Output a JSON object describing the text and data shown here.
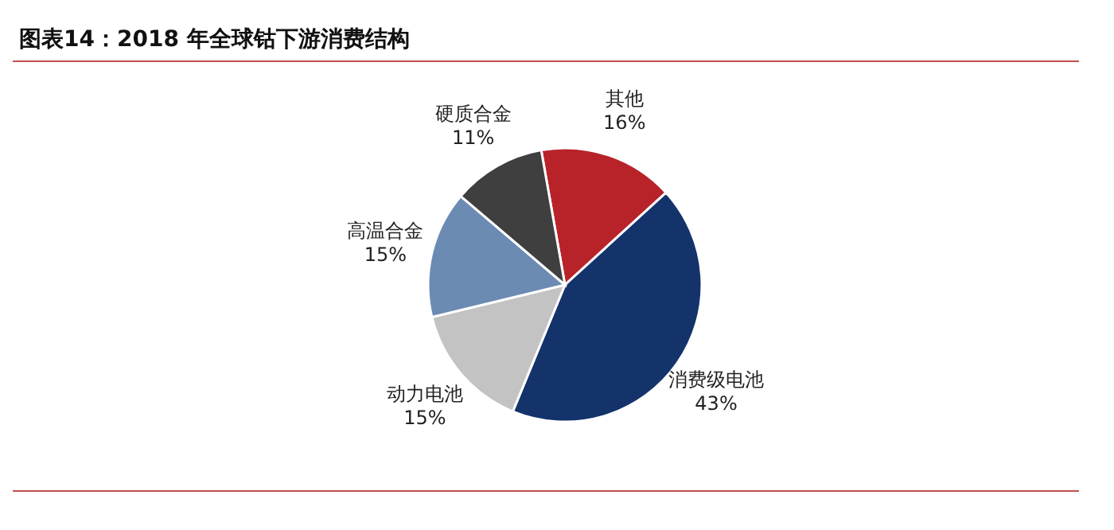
{
  "chart_data": {
    "type": "pie",
    "title": "图表14：2018 年全球钴下游消费结构",
    "categories": [
      "其他",
      "消费级电池",
      "动力电池",
      "高温合金",
      "硬质合金"
    ],
    "values": [
      16,
      43,
      15,
      15,
      11
    ],
    "colors": [
      "#b8232a",
      "#14336b",
      "#c3c3c3",
      "#6b8bb3",
      "#3f3f3f"
    ],
    "value_labels": [
      "16%",
      "43%",
      "15%",
      "15%",
      "11%"
    ]
  }
}
